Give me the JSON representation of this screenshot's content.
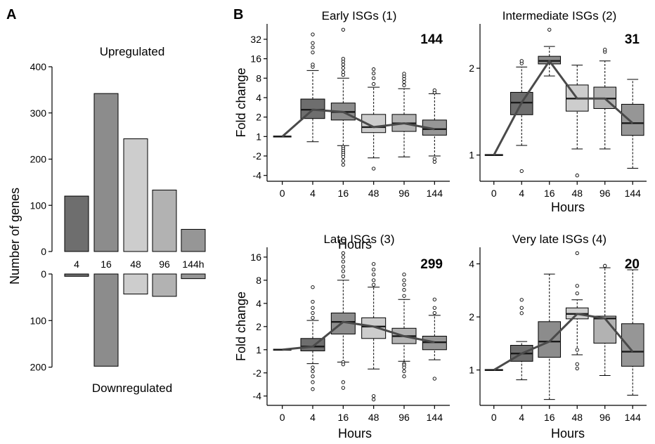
{
  "panel_labels": {
    "a": "A",
    "b": "B"
  },
  "colors": {
    "c4": "#6e6e6e",
    "c16": "#8c8c8c",
    "c48": "#cdcdcd",
    "c96": "#b2b2b2",
    "c144": "#969696",
    "median": "#1a1a1a",
    "trend": "#4a4a4a"
  },
  "chart_data": [
    {
      "id": "A",
      "type": "bar",
      "categories": [
        "4",
        "16",
        "48",
        "96",
        "144h"
      ],
      "series": [
        {
          "name": "Upregulated",
          "values": [
            120,
            342,
            244,
            133,
            48
          ]
        },
        {
          "name": "Downregulated",
          "values": [
            5,
            198,
            43,
            48,
            10
          ]
        }
      ],
      "ylabel": "Number of genes",
      "up_ticks": [
        "0",
        "100",
        "200",
        "300",
        "400"
      ],
      "up_ylim": [
        0,
        400
      ],
      "down_ticks": [
        "0",
        "100",
        "200"
      ],
      "down_ylim": [
        0,
        200
      ]
    },
    {
      "id": "B1",
      "type": "box",
      "title": "Early ISGs (1)",
      "count": "144",
      "xlabel": "Hours",
      "ylabel": "Fold change",
      "x": [
        "0",
        "4",
        "16",
        "48",
        "96",
        "144"
      ],
      "y_ticks": [
        "-4",
        "-2",
        "1",
        "2",
        "4",
        "8",
        "16",
        "32"
      ],
      "baseline": 1,
      "boxes": [
        {
          "x": "4",
          "whisker_low": 0.2,
          "q1": 1.9,
          "median": 2.6,
          "q3": 3.8,
          "whisker_high": 10.5,
          "outliers_low": [],
          "outliers_high": [
            12,
            13,
            20,
            24,
            28,
            38
          ]
        },
        {
          "x": "16",
          "whisker_low": -0.4,
          "q1": 1.8,
          "median": 2.4,
          "q3": 3.3,
          "whisker_high": 8,
          "outliers_low": [
            -0.6,
            -0.9,
            -1.2,
            -1.5,
            -1.8,
            -2.1,
            -2.5,
            -2.9
          ],
          "outliers_high": [
            9,
            10,
            11.5,
            13,
            14.5,
            16,
            45
          ]
        },
        {
          "x": "48",
          "whisker_low": -2.2,
          "q1": 1.15,
          "median": 1.4,
          "q3": 2.2,
          "whisker_high": 5.8,
          "outliers_low": [
            -3.3
          ],
          "outliers_high": [
            6.5,
            8,
            9.5,
            11
          ]
        },
        {
          "x": "96",
          "whisker_low": -2.1,
          "q1": 1.2,
          "median": 1.6,
          "q3": 2.2,
          "whisker_high": 5.5,
          "outliers_low": [],
          "outliers_high": [
            6.2,
            7,
            7.8,
            8.6,
            9.4
          ]
        },
        {
          "x": "144",
          "whisker_low": -2,
          "q1": 1.05,
          "median": 1.3,
          "q3": 1.8,
          "whisker_high": 4.6,
          "outliers_low": [
            -2.3,
            -2.6
          ],
          "outliers_high": [
            4.8,
            5.2
          ]
        }
      ],
      "trend": [
        1,
        2.6,
        2.4,
        1.4,
        1.6,
        1.3
      ]
    },
    {
      "id": "B2",
      "type": "box",
      "title": "Intermediate  ISGs (2)",
      "count": "31",
      "xlabel": "Hours",
      "ylabel": "",
      "x": [
        "0",
        "4",
        "16",
        "48",
        "96",
        "144"
      ],
      "y_ticks": [
        "1",
        "2"
      ],
      "baseline": 1,
      "boxes": [
        {
          "x": "4",
          "whisker_low": 1.08,
          "q1": 1.38,
          "median": 1.52,
          "q3": 1.65,
          "whisker_high": 2.02,
          "outliers_low": [
            0.88
          ],
          "outliers_high": [
            2.08,
            2.12
          ]
        },
        {
          "x": "16",
          "whisker_low": 1.88,
          "q1": 2.07,
          "median": 2.12,
          "q3": 2.2,
          "whisker_high": 2.38,
          "outliers_low": [],
          "outliers_high": [
            2.72
          ]
        },
        {
          "x": "48",
          "whisker_low": 1.05,
          "q1": 1.42,
          "median": 1.57,
          "q3": 1.75,
          "whisker_high": 2.05,
          "outliers_low": [
            0.85
          ],
          "outliers_high": []
        },
        {
          "x": "96",
          "whisker_low": 1.05,
          "q1": 1.45,
          "median": 1.57,
          "q3": 1.72,
          "whisker_high": 2.12,
          "outliers_low": [],
          "outliers_high": [
            2.28,
            2.32
          ]
        },
        {
          "x": "144",
          "whisker_low": 0.9,
          "q1": 1.17,
          "median": 1.29,
          "q3": 1.5,
          "whisker_high": 1.83,
          "outliers_low": [],
          "outliers_high": []
        }
      ],
      "trend": [
        1,
        1.52,
        2.12,
        1.57,
        1.57,
        1.29
      ]
    },
    {
      "id": "B3",
      "type": "box",
      "title": "Late ISGs (3)",
      "count": "299",
      "xlabel": "Hours",
      "ylabel": "Fold change",
      "x": [
        "0",
        "4",
        "16",
        "48",
        "96",
        "144"
      ],
      "y_ticks": [
        "-4",
        "-2",
        "1",
        "2",
        "4",
        "8",
        "16"
      ],
      "baseline": 1,
      "boxes": [
        {
          "x": "4",
          "whisker_low": -0.8,
          "q1": 0.85,
          "median": 1.1,
          "q3": 1.4,
          "whisker_high": 2.4,
          "outliers_low": [
            -1.3,
            -1.8,
            -2.3,
            -2.8,
            -3.4
          ],
          "outliers_high": [
            2.6,
            3,
            3.5,
            4.2,
            6.5
          ]
        },
        {
          "x": "16",
          "whisker_low": -0.6,
          "q1": 1.6,
          "median": 2.3,
          "q3": 3,
          "whisker_high": 8,
          "outliers_low": [
            -0.6,
            -0.9,
            -2.8,
            -3.3
          ],
          "outliers_high": [
            9,
            10.5,
            12,
            14,
            16,
            18
          ]
        },
        {
          "x": "48",
          "whisker_low": -1.5,
          "q1": 1.4,
          "median": 2,
          "q3": 2.6,
          "whisker_high": 6.5,
          "outliers_low": [
            -4,
            -4.3
          ],
          "outliers_high": [
            7,
            8,
            9.5,
            11,
            13
          ]
        },
        {
          "x": "96",
          "whisker_low": -0.5,
          "q1": 1.2,
          "median": 1.5,
          "q3": 1.9,
          "whisker_high": 4.5,
          "outliers_low": [
            -0.8,
            -1,
            -1.3,
            -1.8,
            -2.3
          ],
          "outliers_high": [
            5,
            6,
            7,
            8,
            9.5
          ]
        },
        {
          "x": "144",
          "whisker_low": -0.3,
          "q1": 1,
          "median": 1.25,
          "q3": 1.5,
          "whisker_high": 2.8,
          "outliers_low": [
            -2.5
          ],
          "outliers_high": [
            3,
            3.5,
            4.5
          ]
        }
      ],
      "trend": [
        1,
        1.1,
        2.3,
        2,
        1.5,
        1.25
      ]
    },
    {
      "id": "B4",
      "type": "box",
      "title": "Very late ISGs (4)",
      "count": "20",
      "xlabel": "Hours",
      "ylabel": "",
      "x": [
        "0",
        "4",
        "16",
        "48",
        "96",
        "144"
      ],
      "y_ticks": [
        "1",
        "2",
        "4"
      ],
      "baseline": 1,
      "boxes": [
        {
          "x": "4",
          "whisker_low": 0.88,
          "q1": 1.12,
          "median": 1.24,
          "q3": 1.38,
          "whisker_high": 1.45,
          "outliers_low": [],
          "outliers_high": [
            2.1,
            2.25,
            2.5
          ]
        },
        {
          "x": "16",
          "whisker_low": 0.68,
          "q1": 1.18,
          "median": 1.45,
          "q3": 1.88,
          "whisker_high": 3.5,
          "outliers_low": [],
          "outliers_high": []
        },
        {
          "x": "48",
          "whisker_low": 1.22,
          "q1": 1.95,
          "median": 2.08,
          "q3": 2.25,
          "whisker_high": 2.5,
          "outliers_low": [
            1.02,
            1.08,
            1.3
          ],
          "outliers_high": [
            2.72,
            3,
            4.6
          ]
        },
        {
          "x": "96",
          "whisker_low": 0.93,
          "q1": 1.42,
          "median": 1.96,
          "q3": 2.02,
          "whisker_high": 3.8,
          "outliers_low": [],
          "outliers_high": [
            3.9
          ]
        },
        {
          "x": "144",
          "whisker_low": 0.72,
          "q1": 1.05,
          "median": 1.27,
          "q3": 1.83,
          "whisker_high": 3.7,
          "outliers_low": [],
          "outliers_high": []
        }
      ],
      "trend": [
        1,
        1.24,
        1.45,
        2.08,
        1.96,
        1.27
      ]
    }
  ]
}
